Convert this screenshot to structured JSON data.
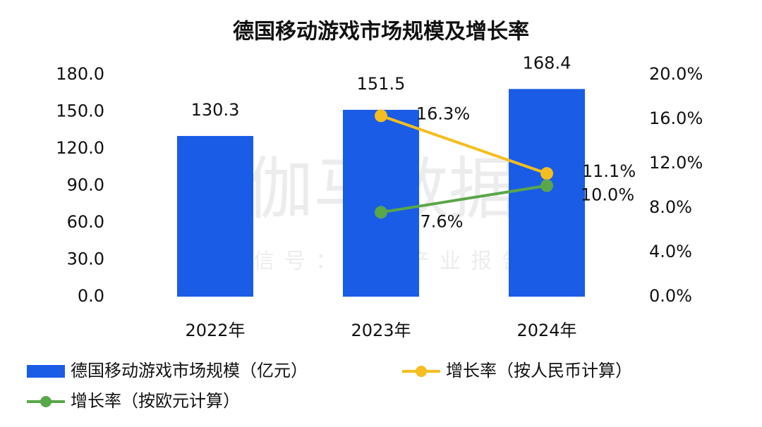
{
  "chart_data": {
    "type": "bar-line",
    "title": "德国移动游戏市场规模及增长率",
    "watermark": "伽马数据",
    "watermark_subtitle": "微信号：游戏产业报告",
    "categories": [
      "2022年",
      "2023年",
      "2024年"
    ],
    "series": [
      {
        "name": "德国移动游戏市场规模（亿元）",
        "type": "bar",
        "color": "#1a5ce6",
        "values": [
          130.3,
          151.5,
          168.4
        ]
      },
      {
        "name": "增长率（按人民币计算）",
        "type": "line",
        "axis": "y2",
        "color": "#f5bd1f",
        "values": [
          null,
          16.3,
          11.1
        ],
        "value_labels": [
          null,
          "16.3%",
          "11.1%"
        ]
      },
      {
        "name": "增长率（按欧元计算）",
        "type": "line",
        "axis": "y2",
        "color": "#5aa64a",
        "values": [
          null,
          7.6,
          10.0
        ],
        "value_labels": [
          null,
          "7.6%",
          "10.0%"
        ]
      }
    ],
    "ylim": [
      0,
      180
    ],
    "yticks": [
      {
        "value": 0,
        "label": "0.0"
      },
      {
        "value": 30,
        "label": "30.0"
      },
      {
        "value": 60,
        "label": "60.0"
      },
      {
        "value": 90,
        "label": "90.0"
      },
      {
        "value": 120,
        "label": "120.0"
      },
      {
        "value": 150,
        "label": "150.0"
      },
      {
        "value": 180,
        "label": "180.0"
      }
    ],
    "y2lim": [
      0,
      20
    ],
    "y2ticks": [
      {
        "value": 0,
        "label": "0.0%"
      },
      {
        "value": 4,
        "label": "4.0%"
      },
      {
        "value": 8,
        "label": "8.0%"
      },
      {
        "value": 12,
        "label": "12.0%"
      },
      {
        "value": 16,
        "label": "16.0%"
      },
      {
        "value": 20,
        "label": "20.0%"
      }
    ],
    "grid": false
  }
}
